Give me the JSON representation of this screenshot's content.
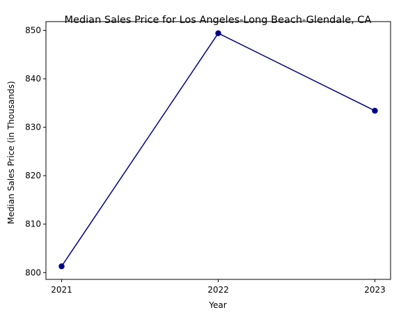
{
  "chart_data": {
    "type": "line",
    "title": "Median Sales Price for Los Angeles-Long Beach-Glendale, CA",
    "xlabel": "Year",
    "ylabel": "Median Sales Price (in Thousands)",
    "x": [
      "2021",
      "2022",
      "2023"
    ],
    "series": [
      {
        "values": [
          801.3,
          849.4,
          833.4
        ],
        "color": "#00008b",
        "marker": "circle"
      }
    ],
    "ylim": [
      798.6,
      851.8
    ],
    "yticks": [
      800,
      810,
      820,
      830,
      840,
      850
    ],
    "grid": false,
    "legend": "none"
  }
}
